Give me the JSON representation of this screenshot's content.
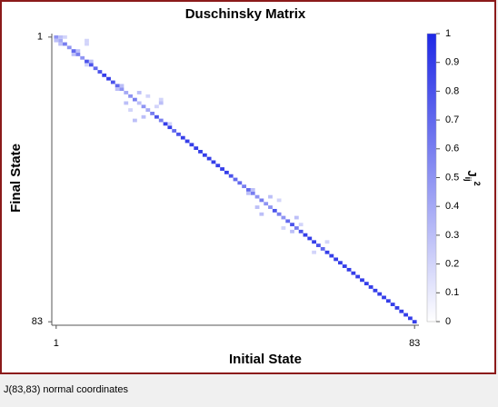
{
  "chart_data": {
    "type": "heatmap",
    "title": "Duschinsky Matrix",
    "xlabel": "Initial State",
    "ylabel": "Final State",
    "xlim": [
      0,
      84
    ],
    "ylim": [
      0,
      84
    ],
    "xticks": [
      1,
      83
    ],
    "yticks": [
      1,
      83
    ],
    "y_inverted": true,
    "clim": [
      0,
      1
    ],
    "cticks": [
      0,
      0.1,
      0.2,
      0.3,
      0.4,
      0.5,
      0.6,
      0.7,
      0.8,
      0.9,
      1
    ],
    "colorbar_label": {
      "base": "J",
      "sub": "ij",
      "sup": "2"
    },
    "colormap": [
      "#ffffff",
      "#1e28e6"
    ],
    "rows": [
      1,
      2,
      3,
      4,
      5,
      6,
      7,
      8,
      9,
      10,
      11,
      12,
      13,
      14,
      15,
      16,
      17,
      18,
      19,
      20,
      21,
      22,
      23,
      24,
      25,
      26,
      27,
      28,
      29,
      30,
      31,
      32,
      33,
      34,
      35,
      36,
      37,
      38,
      39,
      40,
      41,
      42,
      43,
      44,
      45,
      46,
      47,
      48,
      49,
      50,
      51,
      52,
      53,
      54,
      55,
      56,
      57,
      58,
      59,
      60,
      61,
      62,
      63,
      64,
      65,
      66,
      67,
      68,
      69,
      70,
      71,
      72,
      73,
      74,
      75,
      76,
      77,
      78,
      79,
      80,
      81,
      82,
      83,
      1,
      2,
      1,
      3,
      2,
      3,
      5,
      6,
      8,
      9,
      15,
      16,
      17,
      20,
      18,
      22,
      19,
      25,
      20,
      21,
      24,
      26,
      45,
      46,
      47,
      50,
      48,
      52,
      53,
      56,
      57,
      55,
      60,
      63
    ],
    "cols": [
      1,
      2,
      3,
      4,
      5,
      6,
      7,
      8,
      9,
      10,
      11,
      12,
      13,
      14,
      15,
      16,
      17,
      18,
      19,
      20,
      21,
      22,
      23,
      24,
      25,
      26,
      27,
      28,
      29,
      30,
      31,
      32,
      33,
      34,
      35,
      36,
      37,
      38,
      39,
      40,
      41,
      42,
      43,
      44,
      45,
      46,
      47,
      48,
      49,
      50,
      51,
      52,
      53,
      54,
      55,
      56,
      57,
      58,
      59,
      60,
      61,
      62,
      63,
      64,
      65,
      66,
      67,
      68,
      69,
      70,
      71,
      72,
      73,
      74,
      75,
      76,
      77,
      78,
      79,
      80,
      81,
      82,
      83,
      2,
      1,
      3,
      2,
      8,
      8,
      6,
      5,
      9,
      8,
      16,
      15,
      20,
      17,
      22,
      18,
      25,
      19,
      25,
      24,
      21,
      27,
      46,
      45,
      50,
      47,
      52,
      48,
      56,
      53,
      55,
      57,
      63,
      60
    ],
    "values": [
      0.5,
      0.4,
      0.6,
      0.5,
      0.7,
      0.6,
      0.5,
      0.8,
      0.8,
      0.7,
      0.8,
      0.9,
      0.9,
      0.8,
      0.7,
      0.5,
      0.4,
      0.5,
      0.6,
      0.3,
      0.5,
      0.4,
      0.6,
      0.8,
      0.6,
      0.9,
      0.9,
      0.7,
      0.8,
      0.9,
      0.9,
      0.9,
      0.9,
      0.9,
      0.9,
      0.9,
      0.9,
      0.9,
      0.9,
      0.9,
      0.8,
      0.7,
      0.7,
      0.6,
      0.7,
      0.6,
      0.5,
      0.6,
      0.5,
      0.5,
      0.8,
      0.6,
      0.5,
      0.7,
      0.8,
      0.6,
      0.8,
      0.9,
      0.9,
      0.9,
      0.8,
      0.7,
      0.9,
      0.9,
      0.9,
      0.9,
      0.9,
      0.9,
      0.9,
      0.9,
      0.9,
      0.9,
      0.9,
      0.9,
      0.9,
      0.9,
      0.9,
      0.9,
      0.9,
      0.9,
      0.9,
      0.9,
      0.9,
      0.3,
      0.3,
      0.2,
      0.3,
      0.2,
      0.2,
      0.3,
      0.3,
      0.3,
      0.2,
      0.3,
      0.3,
      0.3,
      0.3,
      0.2,
      0.2,
      0.2,
      0.3,
      0.3,
      0.2,
      0.3,
      0.2,
      0.3,
      0.3,
      0.3,
      0.3,
      0.2,
      0.3,
      0.3,
      0.2,
      0.3,
      0.2,
      0.2,
      0.2
    ]
  },
  "status_bar": "J(83,83) normal coordinates"
}
